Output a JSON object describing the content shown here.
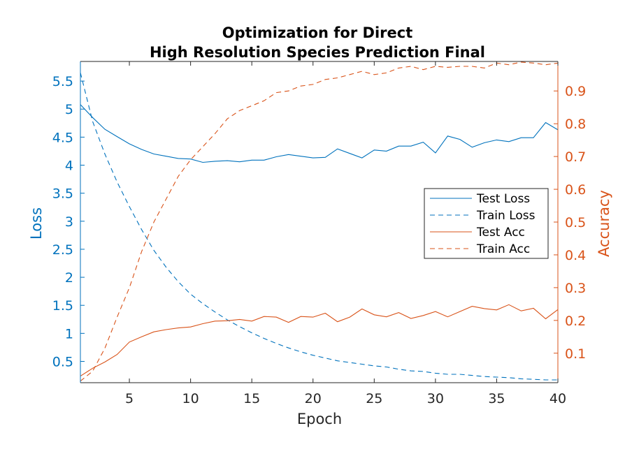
{
  "chart_data": {
    "type": "line",
    "title_lines": [
      "Optimization for Direct",
      "High Resolution Species Prediction Final"
    ],
    "xlabel": "Epoch",
    "ylabel_left": "Loss",
    "ylabel_right": "Accuracy",
    "xlim": [
      1,
      40
    ],
    "ylim_left": [
      0.12,
      5.85
    ],
    "ylim_right": [
      0.01,
      0.99
    ],
    "x_ticks": [
      5,
      10,
      15,
      20,
      25,
      30,
      35,
      40
    ],
    "y_left_ticks": [
      0.5,
      1,
      1.5,
      2,
      2.5,
      3,
      3.5,
      4,
      4.5,
      5,
      5.5
    ],
    "y_right_ticks": [
      0.1,
      0.2,
      0.3,
      0.4,
      0.5,
      0.6,
      0.7,
      0.8,
      0.9
    ],
    "grid": false,
    "legend_position": "right",
    "colors": {
      "loss": "#0072BD",
      "acc": "#D95319",
      "axis": "#262626"
    },
    "x": [
      1,
      2,
      3,
      4,
      5,
      6,
      7,
      8,
      9,
      10,
      11,
      12,
      13,
      14,
      15,
      16,
      17,
      18,
      19,
      20,
      21,
      22,
      23,
      24,
      25,
      26,
      27,
      28,
      29,
      30,
      31,
      32,
      33,
      34,
      35,
      36,
      37,
      38,
      39,
      40
    ],
    "series": [
      {
        "name": "Test Loss",
        "axis": "left",
        "style": "solid",
        "values": [
          5.08,
          4.85,
          4.64,
          4.51,
          4.38,
          4.28,
          4.2,
          4.16,
          4.12,
          4.11,
          4.05,
          4.07,
          4.08,
          4.06,
          4.09,
          4.09,
          4.15,
          4.19,
          4.16,
          4.13,
          4.14,
          4.29,
          4.21,
          4.13,
          4.27,
          4.25,
          4.34,
          4.34,
          4.41,
          4.22,
          4.52,
          4.46,
          4.32,
          4.4,
          4.45,
          4.42,
          4.49,
          4.49,
          4.76,
          4.63
        ]
      },
      {
        "name": "Train Loss",
        "axis": "left",
        "style": "dashed",
        "values": [
          5.65,
          4.78,
          4.2,
          3.7,
          3.26,
          2.85,
          2.48,
          2.18,
          1.92,
          1.7,
          1.53,
          1.38,
          1.24,
          1.12,
          1.01,
          0.91,
          0.82,
          0.74,
          0.67,
          0.61,
          0.56,
          0.51,
          0.48,
          0.45,
          0.42,
          0.4,
          0.36,
          0.33,
          0.32,
          0.29,
          0.27,
          0.27,
          0.25,
          0.23,
          0.22,
          0.21,
          0.19,
          0.18,
          0.17,
          0.17
        ]
      },
      {
        "name": "Test Acc",
        "axis": "right",
        "style": "solid",
        "values": [
          0.03,
          0.054,
          0.073,
          0.096,
          0.134,
          0.15,
          0.165,
          0.172,
          0.177,
          0.18,
          0.19,
          0.198,
          0.199,
          0.203,
          0.198,
          0.212,
          0.21,
          0.194,
          0.212,
          0.21,
          0.222,
          0.196,
          0.21,
          0.235,
          0.217,
          0.211,
          0.224,
          0.206,
          0.215,
          0.227,
          0.211,
          0.227,
          0.243,
          0.236,
          0.232,
          0.248,
          0.229,
          0.237,
          0.205,
          0.233
        ]
      },
      {
        "name": "Train Acc",
        "axis": "right",
        "style": "dashed",
        "values": [
          0.015,
          0.045,
          0.115,
          0.21,
          0.3,
          0.41,
          0.5,
          0.57,
          0.64,
          0.69,
          0.73,
          0.77,
          0.815,
          0.84,
          0.855,
          0.87,
          0.895,
          0.9,
          0.915,
          0.92,
          0.935,
          0.94,
          0.95,
          0.96,
          0.95,
          0.955,
          0.97,
          0.975,
          0.965,
          0.975,
          0.972,
          0.975,
          0.975,
          0.97,
          0.985,
          0.98,
          0.988,
          0.985,
          0.98,
          0.985
        ]
      }
    ]
  }
}
